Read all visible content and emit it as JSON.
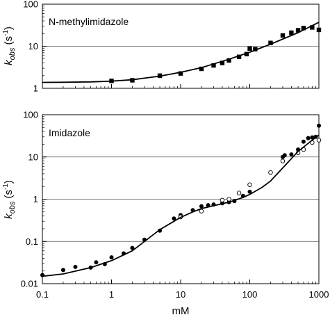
{
  "chart_data": [
    {
      "type": "scatter",
      "panel_label": "N-methylimidazole",
      "ylabel": {
        "main": "k",
        "sub": "obs",
        "unit_prefix": " (s",
        "unit_sup": "-1",
        "unit_suffix": ")"
      },
      "x_scale": "log",
      "y_scale": "log",
      "xlim": [
        0.1,
        1000
      ],
      "ylim": [
        1,
        100
      ],
      "y_ticks": [
        1,
        10,
        100
      ],
      "y_tick_labels": [
        "1",
        "10",
        "100"
      ],
      "grid": "horizontal",
      "series": [
        {
          "marker": "filled-square",
          "x": [
            1,
            2,
            5,
            10,
            20,
            30,
            40,
            50,
            70,
            90,
            100,
            120,
            200,
            300,
            400,
            500,
            600,
            800,
            1000
          ],
          "y": [
            1.5,
            1.55,
            2.0,
            2.25,
            2.9,
            3.5,
            4.0,
            4.6,
            5.6,
            6.5,
            8.8,
            8.5,
            12.0,
            18.0,
            21.0,
            24.0,
            27.0,
            28.0,
            24.5
          ]
        },
        {
          "marker": "line",
          "x": [
            0.1,
            0.2,
            0.5,
            1,
            2,
            5,
            10,
            20,
            50,
            100,
            200,
            500,
            1000
          ],
          "y": [
            1.38,
            1.39,
            1.42,
            1.48,
            1.6,
            1.95,
            2.4,
            3.1,
            4.9,
            7.2,
            11.2,
            21.0,
            37.0
          ]
        }
      ]
    },
    {
      "type": "scatter",
      "panel_label": "Imidazole",
      "ylabel": {
        "main": "k",
        "sub": "obs",
        "unit_prefix": " (s",
        "unit_sup": "-1",
        "unit_suffix": ")"
      },
      "xlabel": "mM",
      "x_scale": "log",
      "y_scale": "log",
      "xlim": [
        0.1,
        1000
      ],
      "ylim": [
        0.01,
        100
      ],
      "x_ticks": [
        0.1,
        1,
        10,
        100,
        1000
      ],
      "x_tick_labels": [
        "0.1",
        "1",
        "10",
        "100",
        "1000"
      ],
      "y_ticks": [
        0.01,
        0.1,
        1,
        10,
        100
      ],
      "y_tick_labels": [
        "0.01",
        "0.1",
        "1",
        "10",
        "100"
      ],
      "grid": "horizontal",
      "series": [
        {
          "marker": "filled-circle",
          "x": [
            0.1,
            0.2,
            0.3,
            0.5,
            0.6,
            0.8,
            1,
            1.5,
            2,
            3,
            5,
            8,
            10,
            15,
            20,
            25,
            30,
            40,
            50,
            60,
            80,
            100,
            300,
            320,
            400,
            500,
            600,
            700,
            800,
            900,
            1000
          ],
          "y": [
            0.016,
            0.021,
            0.025,
            0.024,
            0.032,
            0.029,
            0.042,
            0.052,
            0.07,
            0.11,
            0.18,
            0.35,
            0.42,
            0.55,
            0.68,
            0.72,
            0.75,
            0.8,
            0.85,
            0.9,
            1.2,
            1.5,
            10.0,
            11.0,
            11.5,
            15.0,
            23.0,
            28.0,
            29.0,
            30.0,
            55.0
          ]
        },
        {
          "marker": "open-circle",
          "x": [
            10,
            20,
            40,
            50,
            70,
            100,
            200,
            300,
            500,
            600,
            800,
            1000
          ],
          "y": [
            0.38,
            0.52,
            0.95,
            1.0,
            1.4,
            2.2,
            4.3,
            8.0,
            12.5,
            15.0,
            22.0,
            25.0
          ]
        },
        {
          "marker": "line",
          "x": [
            0.1,
            0.2,
            0.5,
            1,
            2,
            3,
            5,
            8,
            10,
            15,
            20,
            30,
            50,
            80,
            100,
            150,
            200,
            300,
            500,
            800,
            1000
          ],
          "y": [
            0.015,
            0.017,
            0.024,
            0.035,
            0.06,
            0.1,
            0.19,
            0.3,
            0.37,
            0.5,
            0.6,
            0.7,
            0.85,
            1.1,
            1.3,
            1.9,
            2.7,
            5.5,
            13.5,
            25.0,
            33.0
          ]
        }
      ]
    }
  ]
}
